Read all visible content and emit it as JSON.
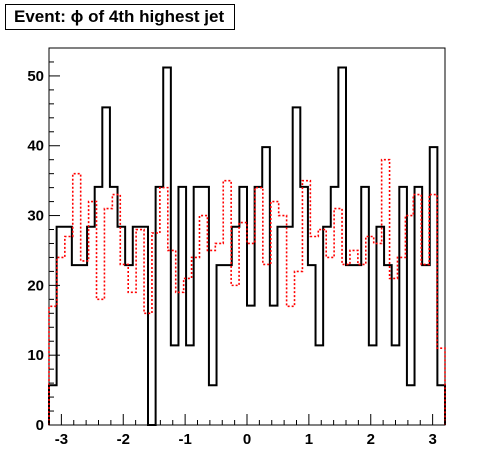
{
  "chart_data": {
    "type": "histogram",
    "title": "Event: ϕ of 4th highest jet",
    "xlabel": "",
    "ylabel": "",
    "xlim": [
      -3.2,
      3.2
    ],
    "ylim": [
      0,
      54
    ],
    "x_ticks": [
      "-3",
      "-2",
      "-1",
      "0",
      "1",
      "2",
      "3"
    ],
    "x_tick_values": [
      -3,
      -2,
      -1,
      0,
      1,
      2,
      3
    ],
    "y_ticks": [
      "0",
      "10",
      "20",
      "30",
      "40",
      "50"
    ],
    "y_tick_values": [
      0,
      10,
      20,
      30,
      40,
      50
    ],
    "grid": false,
    "legend": "none",
    "bin_width": 0.16,
    "series": [
      {
        "style": "solid",
        "color": "#000000",
        "values": [
          5.7,
          28.4,
          28.4,
          22.9,
          22.9,
          28.4,
          34.1,
          45.5,
          34.1,
          28.4,
          22.9,
          28.4,
          28.4,
          0,
          34.1,
          51.2,
          11.4,
          34.1,
          11.4,
          34.1,
          34.1,
          5.7,
          22.9,
          22.9,
          28.4,
          34.1,
          17.1,
          34.1,
          39.8,
          17.1,
          28.4,
          28.4,
          45.5,
          34.1,
          22.9,
          11.4,
          28.4,
          34.1,
          51.2,
          22.9,
          22.9,
          34.1,
          11.4,
          28.4,
          22.9,
          11.4,
          34.1,
          5.7,
          34.1,
          22.9,
          39.8,
          5.7
        ]
      },
      {
        "style": "dotted",
        "color": "#ff0000",
        "values": [
          17.0,
          24.0,
          27.0,
          36.0,
          23.5,
          32.0,
          18.0,
          31.0,
          33.0,
          23.0,
          19.0,
          28.0,
          16.0,
          27.5,
          34.0,
          25.0,
          19.0,
          21.0,
          24.0,
          30.0,
          25.0,
          26.0,
          35.0,
          20.0,
          29.0,
          26.0,
          34.0,
          23.0,
          32.0,
          30.0,
          17.0,
          22.0,
          35.0,
          27.0,
          28.0,
          24.0,
          31.0,
          23.0,
          25.0,
          23.0,
          27.0,
          26.0,
          38.0,
          21.0,
          24.0,
          30.0,
          33.0,
          23.0,
          33.0,
          11.0
        ]
      }
    ]
  }
}
